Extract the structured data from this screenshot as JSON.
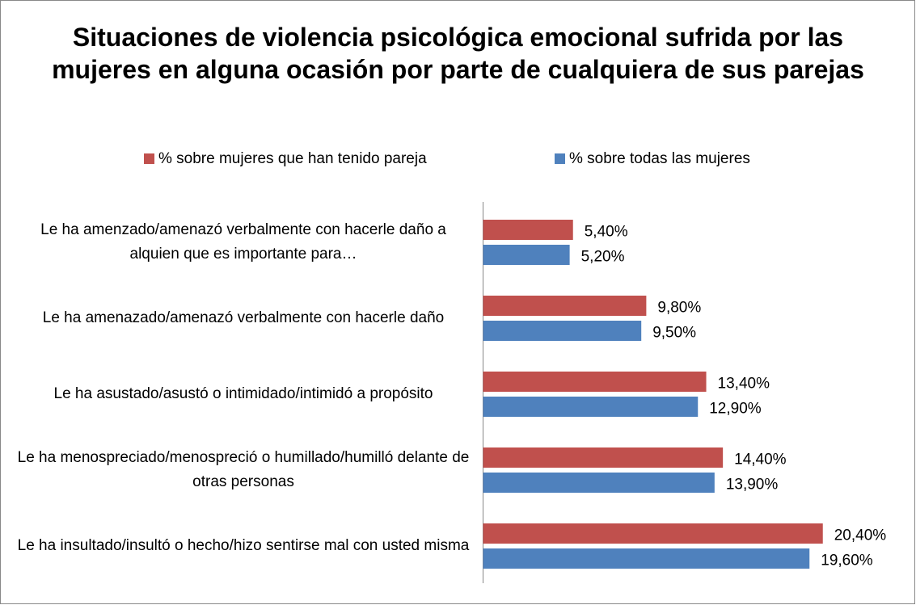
{
  "chart_data": {
    "type": "bar",
    "orientation": "horizontal",
    "title": "Situaciones de violencia psicológica emocional sufrida por las mujeres en alguna ocasión por parte de cualquiera de sus parejas",
    "categories": [
      "Le ha amenzado/amenazó verbalmente con hacerle daño a alquien que es importante para…",
      "Le ha amenazado/amenazó verbalmente con hacerle daño",
      "Le ha asustado/asustó o intimidado/intimidó a propósito",
      "Le ha menospreciado/menospreció o humillado/humilló delante de otras personas",
      "Le ha insultado/insultó o hecho/hizo sentirse mal con usted misma"
    ],
    "series": [
      {
        "name": "% sobre mujeres que han tenido pareja",
        "color": "#c0504d",
        "values": [
          5.4,
          9.8,
          13.4,
          14.4,
          20.4
        ],
        "value_labels": [
          "5,40%",
          "9,80%",
          "13,40%",
          "14,40%",
          "20,40%"
        ]
      },
      {
        "name": "% sobre todas las mujeres",
        "color": "#4f81bd",
        "values": [
          5.2,
          9.5,
          12.9,
          13.9,
          19.6
        ],
        "value_labels": [
          "5,20%",
          "9,50%",
          "12,90%",
          "13,90%",
          "19,60%"
        ]
      }
    ],
    "legend": "top"
  }
}
